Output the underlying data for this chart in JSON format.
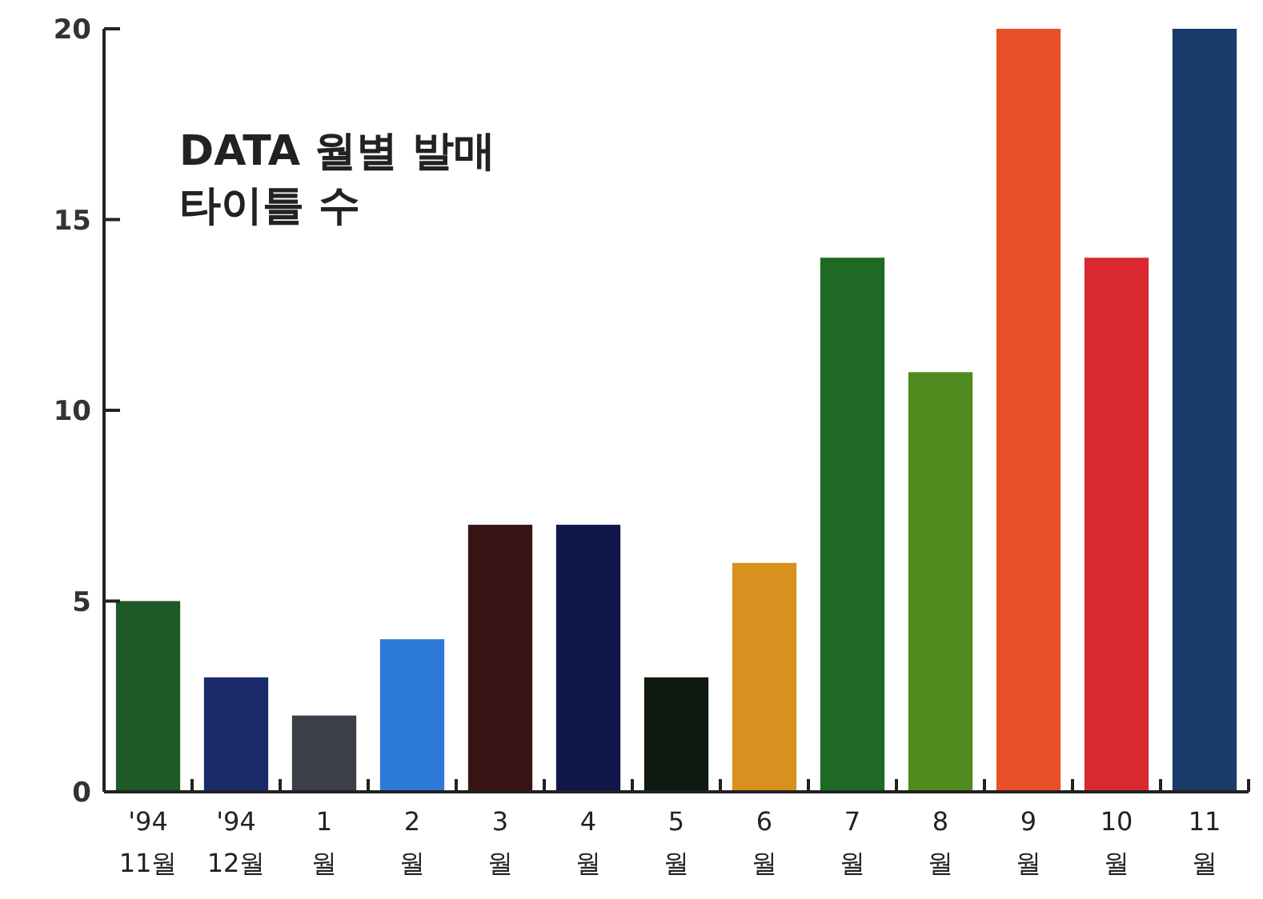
{
  "chart_data": {
    "type": "bar",
    "title": "DATA  월별 발매\n타이틀 수",
    "categories": [
      "'94\n11월",
      "'94\n12월",
      "1\n월",
      "2\n월",
      "3\n월",
      "4\n월",
      "5\n월",
      "6\n월",
      "7\n월",
      "8\n월",
      "9\n월",
      "10\n월",
      "11\n월"
    ],
    "values": [
      5,
      3,
      2,
      4,
      7,
      7,
      3,
      6,
      14,
      11,
      20,
      14,
      20
    ],
    "colors": [
      "#1e5a28",
      "#1a2a6a",
      "#3a3f48",
      "#2e7ad8",
      "#3a1414",
      "#10154a",
      "#0e1a10",
      "#d8901e",
      "#1e6a24",
      "#4e8a1e",
      "#e8502a",
      "#d82a30",
      "#1a3a6a"
    ],
    "ylim": [
      0,
      20
    ],
    "yticks": [
      0,
      5,
      10,
      15,
      20
    ]
  }
}
